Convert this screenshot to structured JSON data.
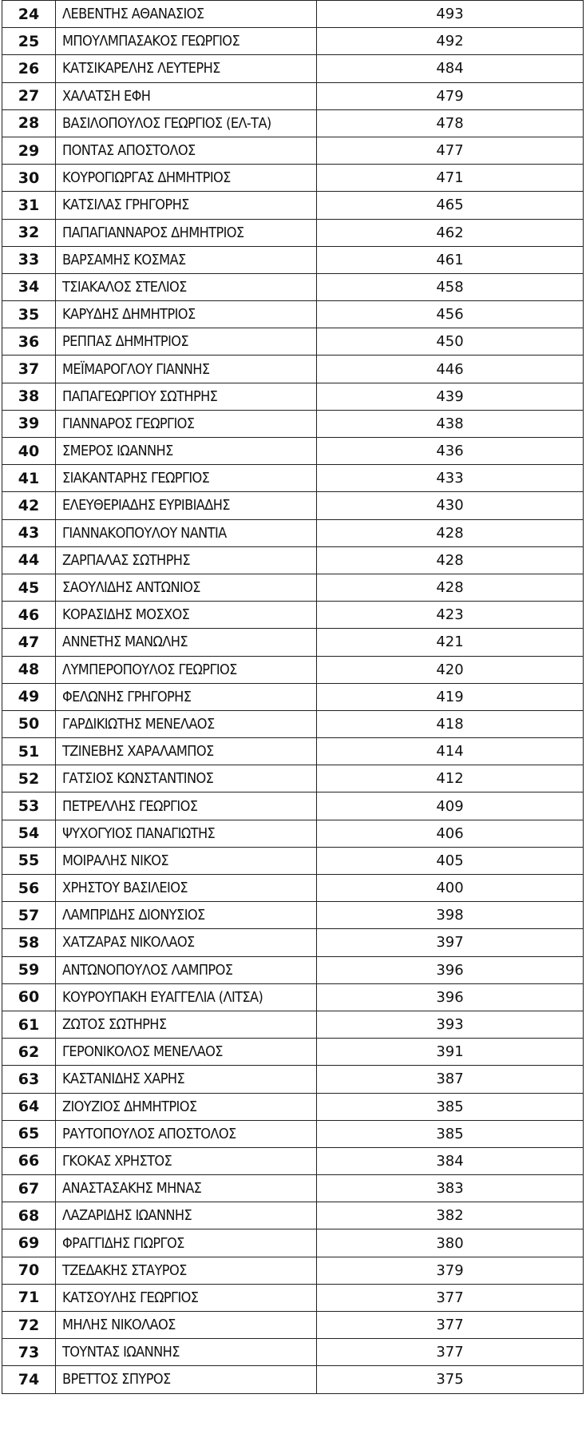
{
  "rows": [
    {
      "rank": "24",
      "name": "ΛΕΒΕΝΤΗΣ ΑΘΑΝΑΣΙΟΣ",
      "votes": "493"
    },
    {
      "rank": "25",
      "name": "ΜΠΟΥΛΜΠΑΣΑΚΟΣ ΓΕΩΡΓΙΟΣ",
      "votes": "492"
    },
    {
      "rank": "26",
      "name": "ΚΑΤΣΙΚΑΡΕΛΗΣ ΛΕΥΤΕΡΗΣ",
      "votes": "484"
    },
    {
      "rank": "27",
      "name": "ΧΑΛΑΤΣΗ ΕΦΗ",
      "votes": "479"
    },
    {
      "rank": "28",
      "name": "ΒΑΣΙΛΟΠΟΥΛΟΣ ΓΕΩΡΓΙΟΣ (ΕΛ-ΤΑ)",
      "votes": "478"
    },
    {
      "rank": "29",
      "name": "ΠΟΝΤΑΣ ΑΠΟΣΤΟΛΟΣ",
      "votes": "477"
    },
    {
      "rank": "30",
      "name": "ΚΟΥΡΟΓΙΩΡΓΑΣ ΔΗΜΗΤΡΙΟΣ",
      "votes": "471"
    },
    {
      "rank": "31",
      "name": "ΚΑΤΣΙΛΑΣ ΓΡΗΓΟΡΗΣ",
      "votes": "465"
    },
    {
      "rank": "32",
      "name": "ΠΑΠΑΓΙΑΝΝΑΡΟΣ ΔΗΜΗΤΡΙΟΣ",
      "votes": "462"
    },
    {
      "rank": "33",
      "name": "ΒΑΡΣΑΜΗΣ ΚΟΣΜΑΣ",
      "votes": "461"
    },
    {
      "rank": "34",
      "name": "ΤΣΙΑΚΑΛΟΣ ΣΤΕΛΙΟΣ",
      "votes": "458"
    },
    {
      "rank": "35",
      "name": "ΚΑΡΥΔΗΣ ΔΗΜΗΤΡΙΟΣ",
      "votes": "456"
    },
    {
      "rank": "36",
      "name": "ΡΕΠΠΑΣ ΔΗΜΗΤΡΙΟΣ",
      "votes": "450"
    },
    {
      "rank": "37",
      "name": "ΜΕΪΜΑΡΟΓΛΟΥ ΓΙΑΝΝΗΣ",
      "votes": "446"
    },
    {
      "rank": "38",
      "name": "ΠΑΠΑΓΕΩΡΓΙΟΥ ΣΩΤΗΡΗΣ",
      "votes": "439"
    },
    {
      "rank": "39",
      "name": "ΓΙΑΝΝΑΡΟΣ ΓΕΩΡΓΙΟΣ",
      "votes": "438"
    },
    {
      "rank": "40",
      "name": "ΣΜΕΡΟΣ ΙΩΑΝΝΗΣ",
      "votes": "436"
    },
    {
      "rank": "41",
      "name": "ΣΙΑΚΑΝΤΑΡΗΣ ΓΕΩΡΓΙΟΣ",
      "votes": "433"
    },
    {
      "rank": "42",
      "name": "ΕΛΕΥΘΕΡΙΑΔΗΣ ΕΥΡΙΒΙΑΔΗΣ",
      "votes": "430"
    },
    {
      "rank": "43",
      "name": "ΓΙΑΝΝΑΚΟΠΟΥΛΟΥ ΝΑΝΤΙΑ",
      "votes": "428"
    },
    {
      "rank": "44",
      "name": "ΖΑΡΠΑΛΑΣ ΣΩΤΗΡΗΣ",
      "votes": "428"
    },
    {
      "rank": "45",
      "name": "ΣΑΟΥΛΙΔΗΣ ΑΝΤΩΝΙΟΣ",
      "votes": "428"
    },
    {
      "rank": "46",
      "name": "ΚΟΡΑΣΙΔΗΣ ΜΟΣΧΟΣ",
      "votes": "423"
    },
    {
      "rank": "47",
      "name": "ΑΝΝΕΤΗΣ ΜΑΝΩΛΗΣ",
      "votes": "421"
    },
    {
      "rank": "48",
      "name": "ΛΥΜΠΕΡΟΠΟΥΛΟΣ ΓΕΩΡΓΙΟΣ",
      "votes": "420"
    },
    {
      "rank": "49",
      "name": "ΦΕΛΩΝΗΣ ΓΡΗΓΟΡΗΣ",
      "votes": "419"
    },
    {
      "rank": "50",
      "name": "ΓΑΡΔΙΚΙΩΤΗΣ ΜΕΝΕΛΑΟΣ",
      "votes": "418"
    },
    {
      "rank": "51",
      "name": "ΤΖΙΝΕΒΗΣ ΧΑΡΑΛΑΜΠΟΣ",
      "votes": "414"
    },
    {
      "rank": "52",
      "name": "ΓΑΤΣΙΟΣ ΚΩΝΣΤΑΝΤΙΝΟΣ",
      "votes": "412"
    },
    {
      "rank": "53",
      "name": "ΠΕΤΡΕΛΛΗΣ ΓΕΩΡΓΙΟΣ",
      "votes": "409"
    },
    {
      "rank": "54",
      "name": "ΨΥΧΟΓΥΙΟΣ ΠΑΝΑΓΙΩΤΗΣ",
      "votes": "406"
    },
    {
      "rank": "55",
      "name": "ΜΟΙΡΑΛΗΣ ΝΙΚΟΣ",
      "votes": "405"
    },
    {
      "rank": "56",
      "name": "ΧΡΗΣΤΟΥ ΒΑΣΙΛΕΙΟΣ",
      "votes": "400"
    },
    {
      "rank": "57",
      "name": "ΛΑΜΠΡΙΔΗΣ ΔΙΟΝΥΣΙΟΣ",
      "votes": "398"
    },
    {
      "rank": "58",
      "name": "ΧΑΤΖΑΡΑΣ ΝΙΚΟΛΑΟΣ",
      "votes": "397"
    },
    {
      "rank": "59",
      "name": "ΑΝΤΩΝΟΠΟΥΛΟΣ ΛΑΜΠΡΟΣ",
      "votes": "396"
    },
    {
      "rank": "60",
      "name": "ΚΟΥΡΟΥΠΑΚΗ ΕΥΑΓΓΕΛΙΑ (ΛΙΤΣΑ)",
      "votes": "396"
    },
    {
      "rank": "61",
      "name": "ΖΩΤΟΣ ΣΩΤΗΡΗΣ",
      "votes": "393"
    },
    {
      "rank": "62",
      "name": "ΓΕΡΟΝΙΚΟΛΟΣ ΜΕΝΕΛΑΟΣ",
      "votes": "391"
    },
    {
      "rank": "63",
      "name": "ΚΑΣΤΑΝΙΔΗΣ ΧΑΡΗΣ",
      "votes": "387"
    },
    {
      "rank": "64",
      "name": "ΖΙΟΥΖΙΟΣ ΔΗΜΗΤΡΙΟΣ",
      "votes": "385"
    },
    {
      "rank": "65",
      "name": "ΡΑΥΤΟΠΟΥΛΟΣ ΑΠΟΣΤΟΛΟΣ",
      "votes": "385"
    },
    {
      "rank": "66",
      "name": "ΓΚΟΚΑΣ ΧΡΗΣΤΟΣ",
      "votes": "384"
    },
    {
      "rank": "67",
      "name": "ΑΝΑΣΤΑΣΑΚΗΣ ΜΗΝΑΣ",
      "votes": "383"
    },
    {
      "rank": "68",
      "name": "ΛΑΖΑΡΙΔΗΣ ΙΩΑΝΝΗΣ",
      "votes": "382"
    },
    {
      "rank": "69",
      "name": "ΦΡΑΓΓΙΔΗΣ ΓΙΩΡΓΟΣ",
      "votes": "380"
    },
    {
      "rank": "70",
      "name": "ΤΖΕΔΑΚΗΣ ΣΤΑΥΡΟΣ",
      "votes": "379"
    },
    {
      "rank": "71",
      "name": "ΚΑΤΣΟΥΛΗΣ ΓΕΩΡΓΙΟΣ",
      "votes": "377"
    },
    {
      "rank": "72",
      "name": "ΜΗΛΗΣ ΝΙΚΟΛΑΟΣ",
      "votes": "377"
    },
    {
      "rank": "73",
      "name": "ΤΟΥΝΤΑΣ ΙΩΑΝΝΗΣ",
      "votes": "377"
    },
    {
      "rank": "74",
      "name": "ΒΡΕΤΤΟΣ ΣΠΥΡΟΣ",
      "votes": "375"
    }
  ]
}
